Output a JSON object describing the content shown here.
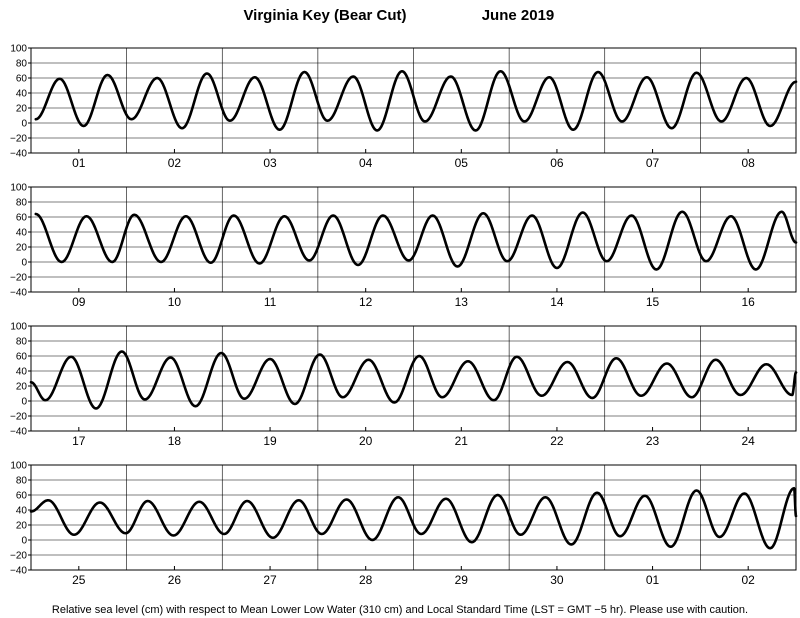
{
  "chart_data": {
    "type": "line",
    "title_station": "Virginia Key (Bear Cut)",
    "title_month": "June   2019",
    "footnote": "Relative sea level (cm) with respect to Mean Lower Low Water (310 cm) and Local Standard Time (LST = GMT −5 hr). Please use with caution.",
    "ylim": [
      -40,
      100
    ],
    "yticks": [
      "100",
      "80",
      "60",
      "40",
      "20",
      "0",
      "−20",
      "−40"
    ],
    "line_color": "#000000",
    "grid_color": "#000000",
    "panels": [
      {
        "days": [
          "01",
          "02",
          "03",
          "04",
          "05",
          "06",
          "07",
          "08"
        ],
        "extrema": [
          {
            "t": 0.05,
            "h": 5
          },
          {
            "t": 0.3,
            "h": 59
          },
          {
            "t": 0.55,
            "h": -4
          },
          {
            "t": 0.8,
            "h": 64
          },
          {
            "t": 1.05,
            "h": 5
          },
          {
            "t": 1.32,
            "h": 60
          },
          {
            "t": 1.58,
            "h": -7
          },
          {
            "t": 1.84,
            "h": 66
          },
          {
            "t": 2.08,
            "h": 3
          },
          {
            "t": 2.34,
            "h": 61
          },
          {
            "t": 2.6,
            "h": -9
          },
          {
            "t": 2.86,
            "h": 68
          },
          {
            "t": 3.1,
            "h": 3
          },
          {
            "t": 3.37,
            "h": 62
          },
          {
            "t": 3.62,
            "h": -10
          },
          {
            "t": 3.88,
            "h": 69
          },
          {
            "t": 4.12,
            "h": 2
          },
          {
            "t": 4.39,
            "h": 62
          },
          {
            "t": 4.65,
            "h": -10
          },
          {
            "t": 4.91,
            "h": 69
          },
          {
            "t": 5.16,
            "h": 2
          },
          {
            "t": 5.42,
            "h": 61
          },
          {
            "t": 5.67,
            "h": -9
          },
          {
            "t": 5.93,
            "h": 68
          },
          {
            "t": 6.18,
            "h": 2
          },
          {
            "t": 6.44,
            "h": 61
          },
          {
            "t": 6.7,
            "h": -7
          },
          {
            "t": 6.96,
            "h": 67
          },
          {
            "t": 7.22,
            "h": 2
          },
          {
            "t": 7.48,
            "h": 60
          },
          {
            "t": 7.73,
            "h": -4
          },
          {
            "t": 8.0,
            "h": 55
          }
        ]
      },
      {
        "days": [
          "09",
          "10",
          "11",
          "12",
          "13",
          "14",
          "15",
          "16"
        ],
        "extrema": [
          {
            "t": 0.05,
            "h": 64
          },
          {
            "t": 0.32,
            "h": 0
          },
          {
            "t": 0.58,
            "h": 61
          },
          {
            "t": 0.85,
            "h": 0
          },
          {
            "t": 1.08,
            "h": 63
          },
          {
            "t": 1.36,
            "h": 0
          },
          {
            "t": 1.62,
            "h": 61
          },
          {
            "t": 1.88,
            "h": -1
          },
          {
            "t": 2.12,
            "h": 62
          },
          {
            "t": 2.39,
            "h": -2
          },
          {
            "t": 2.65,
            "h": 61
          },
          {
            "t": 2.91,
            "h": 2
          },
          {
            "t": 3.16,
            "h": 62
          },
          {
            "t": 3.42,
            "h": -4
          },
          {
            "t": 3.68,
            "h": 62
          },
          {
            "t": 3.95,
            "h": 2
          },
          {
            "t": 4.2,
            "h": 62
          },
          {
            "t": 4.46,
            "h": -6
          },
          {
            "t": 4.73,
            "h": 65
          },
          {
            "t": 4.98,
            "h": 1
          },
          {
            "t": 5.24,
            "h": 62
          },
          {
            "t": 5.5,
            "h": -8
          },
          {
            "t": 5.77,
            "h": 66
          },
          {
            "t": 6.02,
            "h": 1
          },
          {
            "t": 6.28,
            "h": 62
          },
          {
            "t": 6.54,
            "h": -10
          },
          {
            "t": 6.81,
            "h": 67
          },
          {
            "t": 7.06,
            "h": 1
          },
          {
            "t": 7.32,
            "h": 61
          },
          {
            "t": 7.58,
            "h": -10
          },
          {
            "t": 7.85,
            "h": 67
          },
          {
            "t": 8.0,
            "h": 26
          }
        ]
      },
      {
        "days": [
          "17",
          "18",
          "19",
          "20",
          "21",
          "22",
          "23",
          "24"
        ],
        "extrema": [
          {
            "t": 0.0,
            "h": 25
          },
          {
            "t": 0.15,
            "h": 1
          },
          {
            "t": 0.42,
            "h": 59
          },
          {
            "t": 0.68,
            "h": -10
          },
          {
            "t": 0.95,
            "h": 66
          },
          {
            "t": 1.19,
            "h": 2
          },
          {
            "t": 1.46,
            "h": 58
          },
          {
            "t": 1.72,
            "h": -7
          },
          {
            "t": 1.99,
            "h": 64
          },
          {
            "t": 2.23,
            "h": 3
          },
          {
            "t": 2.5,
            "h": 56
          },
          {
            "t": 2.76,
            "h": -4
          },
          {
            "t": 3.02,
            "h": 62
          },
          {
            "t": 3.26,
            "h": 5
          },
          {
            "t": 3.53,
            "h": 55
          },
          {
            "t": 3.8,
            "h": -2
          },
          {
            "t": 4.06,
            "h": 60
          },
          {
            "t": 4.3,
            "h": 5
          },
          {
            "t": 4.57,
            "h": 53
          },
          {
            "t": 4.84,
            "h": 1
          },
          {
            "t": 5.08,
            "h": 59
          },
          {
            "t": 5.34,
            "h": 7
          },
          {
            "t": 5.61,
            "h": 52
          },
          {
            "t": 5.87,
            "h": 4
          },
          {
            "t": 6.12,
            "h": 57
          },
          {
            "t": 6.38,
            "h": 7
          },
          {
            "t": 6.65,
            "h": 50
          },
          {
            "t": 6.91,
            "h": 5
          },
          {
            "t": 7.16,
            "h": 55
          },
          {
            "t": 7.42,
            "h": 8
          },
          {
            "t": 7.69,
            "h": 49
          },
          {
            "t": 7.96,
            "h": 8
          },
          {
            "t": 8.0,
            "h": 38
          }
        ]
      },
      {
        "days": [
          "25",
          "26",
          "27",
          "28",
          "29",
          "30",
          "01",
          "02"
        ],
        "extrema": [
          {
            "t": 0.0,
            "h": 38
          },
          {
            "t": 0.18,
            "h": 53
          },
          {
            "t": 0.45,
            "h": 7
          },
          {
            "t": 0.72,
            "h": 50
          },
          {
            "t": 0.99,
            "h": 9
          },
          {
            "t": 1.22,
            "h": 52
          },
          {
            "t": 1.49,
            "h": 6
          },
          {
            "t": 1.76,
            "h": 51
          },
          {
            "t": 2.02,
            "h": 8
          },
          {
            "t": 2.26,
            "h": 52
          },
          {
            "t": 2.53,
            "h": 3
          },
          {
            "t": 2.8,
            "h": 53
          },
          {
            "t": 3.04,
            "h": 8
          },
          {
            "t": 3.3,
            "h": 54
          },
          {
            "t": 3.57,
            "h": 0
          },
          {
            "t": 3.84,
            "h": 57
          },
          {
            "t": 4.08,
            "h": 8
          },
          {
            "t": 4.34,
            "h": 55
          },
          {
            "t": 4.61,
            "h": -3
          },
          {
            "t": 4.88,
            "h": 60
          },
          {
            "t": 5.12,
            "h": 7
          },
          {
            "t": 5.38,
            "h": 57
          },
          {
            "t": 5.65,
            "h": -6
          },
          {
            "t": 5.92,
            "h": 63
          },
          {
            "t": 6.16,
            "h": 5
          },
          {
            "t": 6.42,
            "h": 59
          },
          {
            "t": 6.69,
            "h": -9
          },
          {
            "t": 6.96,
            "h": 66
          },
          {
            "t": 7.2,
            "h": 4
          },
          {
            "t": 7.46,
            "h": 62
          },
          {
            "t": 7.73,
            "h": -11
          },
          {
            "t": 7.98,
            "h": 69
          },
          {
            "t": 8.0,
            "h": 32
          }
        ]
      }
    ]
  }
}
